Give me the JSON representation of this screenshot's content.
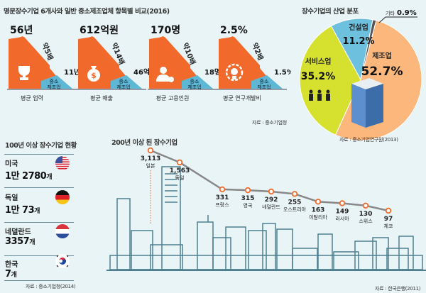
{
  "top_comparison": {
    "title": "명문장수기업 6개사와 일반 중소제조업체 항목별 비교(2016)",
    "source": "자료 : 중소기업청",
    "sme_label_line1": "중소",
    "sme_label_line2": "제조업",
    "items": [
      {
        "caption": "평균 업력",
        "longevity_value": "56년",
        "sme_value": "11년",
        "ratio": "약5배",
        "icon": "trophy-icon"
      },
      {
        "caption": "평균 매출",
        "longevity_value": "612억원",
        "sme_value": "46억원",
        "ratio": "약14배",
        "icon": "money-bag-icon"
      },
      {
        "caption": "평균 고용인원",
        "longevity_value": "170명",
        "sme_value": "18명",
        "ratio": "약10배",
        "icon": "employee-icon"
      },
      {
        "caption": "평균 연구개발비",
        "longevity_value": "2.5%",
        "sme_value": "1.5%",
        "ratio": "약2배",
        "icon": "lightbulb-gear-icon"
      }
    ],
    "colors": {
      "longevity": "#f26a2b",
      "sme": "#5db7d5"
    }
  },
  "chart_data": [
    {
      "type": "pie",
      "title": "장수기업의 산업 분포",
      "source": "자료 : 중소기업연구원(2013)",
      "slices": [
        {
          "label": "제조업",
          "value": 52.7,
          "display": "52.7%",
          "color": "#fbb77c"
        },
        {
          "label": "서비스업",
          "value": 35.2,
          "display": "35.2%",
          "color": "#d6e02f"
        },
        {
          "label": "건설업",
          "value": 11.2,
          "display": "11.2%",
          "color": "#6ec1de"
        },
        {
          "label": "기타",
          "value": 0.9,
          "display": "0.9%",
          "color": "#555555"
        }
      ]
    },
    {
      "type": "line",
      "title": "200년 이상 된 장수기업",
      "source": "자료 : 한국은행(2011)",
      "categories": [
        "일본",
        "독일",
        "프랑스",
        "영국",
        "네덜란드",
        "오스트리아",
        "이탈리아",
        "러시아",
        "스위스",
        "체코"
      ],
      "values": [
        3113,
        1563,
        331,
        315,
        292,
        255,
        163,
        149,
        130,
        97
      ],
      "labels": [
        "3,113",
        "1,563",
        "331",
        "315",
        "292",
        "255",
        "163",
        "149",
        "130",
        "97"
      ],
      "line_color": "#888888",
      "marker_color": "#f26a2b"
    }
  ],
  "century_firms": {
    "title": "100년 이상 장수기업 현황",
    "source": "자료 : 중소기업청(2014)",
    "countries": [
      {
        "name": "미국",
        "count_main": "1만 2780",
        "unit": "개",
        "flag": "us-flag-icon"
      },
      {
        "name": "독일",
        "count_main": "1만 73",
        "unit": "개",
        "flag": "germany-flag-icon"
      },
      {
        "name": "네덜란드",
        "count_main": "3357",
        "unit": "개",
        "flag": "netherlands-flag-icon"
      },
      {
        "name": "한국",
        "count_main": "7",
        "unit": "개",
        "flag": "korea-flag-icon"
      }
    ]
  }
}
